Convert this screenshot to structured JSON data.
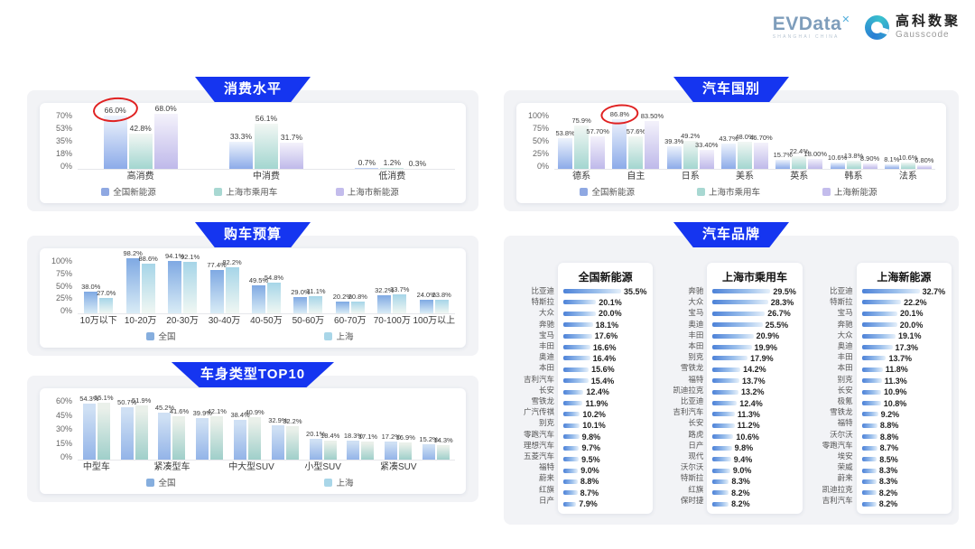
{
  "header": {
    "brand1": "EVData",
    "brand1_sup": "✕",
    "brand1_sub": "SHANGHAI CHINA",
    "brand2_cn": "高科数聚",
    "brand2_en": "Gausscode"
  },
  "colors": {
    "badge_blue": "#1535f0",
    "annotation_red": "#e02121",
    "series_blue": "#8fa8e2",
    "series_teal": "#a8d8d2",
    "series_purple": "#c3bcec",
    "series_cyan": "#a9d6e8"
  },
  "chart_data": [
    {
      "type": "bar",
      "title": "消费水平",
      "yticks": [
        "70%",
        "53%",
        "35%",
        "18%",
        "0%"
      ],
      "ylim": [
        0,
        70
      ],
      "ymax": 70,
      "grid": false,
      "legend_position": "bottom",
      "categories": [
        "高消费",
        "中消费",
        "低消费"
      ],
      "series": [
        {
          "name": "全国新能源",
          "color": "blue",
          "values": [
            "66.0%",
            "33.3%",
            "0.7%"
          ]
        },
        {
          "name": "上海市乘用车",
          "color": "teal",
          "values": [
            "42.8%",
            "56.1%",
            "1.2%"
          ]
        },
        {
          "name": "上海市新能源",
          "color": "purple",
          "values": [
            "68.0%",
            "31.7%",
            "0.3%"
          ]
        }
      ],
      "annotation": {
        "note": "red ellipse around value",
        "group": 0,
        "series": 0,
        "value": "66.0%"
      }
    },
    {
      "type": "bar",
      "title": "购车预算",
      "yticks": [
        "100%",
        "75%",
        "50%",
        "25%",
        "0%"
      ],
      "ylim": [
        0,
        100
      ],
      "ymax": 100,
      "grid": false,
      "legend_position": "bottom",
      "categories": [
        "10万以下",
        "10-20万",
        "20-30万",
        "30-40万",
        "40-50万",
        "50-60万",
        "60-70万",
        "70-100万",
        "100万以上"
      ],
      "series": [
        {
          "name": "全国",
          "color": "blue2",
          "values": [
            "38.0%",
            "98.2%",
            "94.1%",
            "77.4%",
            "49.5%",
            "29.0%",
            "20.2%",
            "32.2%",
            "24.0%"
          ]
        },
        {
          "name": "上海",
          "color": "cyan",
          "values": [
            "27.0%",
            "88.6%",
            "92.1%",
            "82.2%",
            "54.8%",
            "31.1%",
            "20.8%",
            "33.7%",
            "23.8%"
          ]
        }
      ]
    },
    {
      "type": "bar",
      "title": "车身类型TOP10",
      "yticks": [
        "60%",
        "45%",
        "30%",
        "15%",
        "0%"
      ],
      "ylim": [
        0,
        60
      ],
      "ymax": 60,
      "grid": false,
      "legend_position": "bottom",
      "categories": [
        "中型车",
        "",
        "紧凑型车",
        "",
        "中大型SUV",
        "",
        "小型SUV",
        "",
        "紧凑SUV",
        ""
      ],
      "series": [
        {
          "name": "全国",
          "color": "blue3",
          "values": [
            "54.3%",
            "50.7%",
            "45.2%",
            "39.9%",
            "38.4%",
            "32.9%",
            "20.1%",
            "18.3%",
            "17.2%",
            "15.2%"
          ]
        },
        {
          "name": "上海",
          "color": "teal3",
          "values": [
            "55.1%",
            "51.9%",
            "41.6%",
            "42.1%",
            "40.9%",
            "32.2%",
            "18.4%",
            "17.1%",
            "16.9%",
            "14.3%"
          ]
        }
      ]
    },
    {
      "type": "bar",
      "title": "汽车国别",
      "yticks": [
        "100%",
        "75%",
        "50%",
        "25%",
        "0%"
      ],
      "ylim": [
        0,
        100
      ],
      "ymax": 100,
      "grid": false,
      "legend_position": "bottom",
      "categories": [
        "德系",
        "自主",
        "日系",
        "美系",
        "英系",
        "韩系",
        "法系"
      ],
      "series": [
        {
          "name": "全国新能源",
          "color": "blue",
          "values": [
            "53.8%",
            "86.8%",
            "39.3%",
            "43.7%",
            "15.7%",
            "10.6%",
            "8.1%"
          ]
        },
        {
          "name": "上海市乘用车",
          "color": "teal",
          "values": [
            "75.9%",
            "57.6%",
            "49.2%",
            "48.0%",
            "22.4%",
            "13.8%",
            "10.6%"
          ]
        },
        {
          "name": "上海新能源",
          "color": "purple",
          "values": [
            "57.70%",
            "83.50%",
            "33.40%",
            "46.70%",
            "18.00%",
            "8.90%",
            "6.80%"
          ]
        }
      ],
      "annotation": {
        "note": "red ellipse around value",
        "group": 1,
        "series": 0,
        "value": "86.8%"
      }
    },
    {
      "type": "bar",
      "title": "汽车品牌",
      "orientation": "horizontal",
      "lists": [
        {
          "title": "全国新能源",
          "items": [
            {
              "label": "比亚迪",
              "value": "35.5%"
            },
            {
              "label": "特斯拉",
              "value": "20.1%"
            },
            {
              "label": "大众",
              "value": "20.0%"
            },
            {
              "label": "奔驰",
              "value": "18.1%"
            },
            {
              "label": "宝马",
              "value": "17.6%"
            },
            {
              "label": "丰田",
              "value": "16.6%"
            },
            {
              "label": "奥迪",
              "value": "16.4%"
            },
            {
              "label": "本田",
              "value": "15.6%"
            },
            {
              "label": "吉利汽车",
              "value": "15.4%"
            },
            {
              "label": "长安",
              "value": "12.4%"
            },
            {
              "label": "雪铁龙",
              "value": "11.9%"
            },
            {
              "label": "广汽传祺",
              "value": "10.2%"
            },
            {
              "label": "别克",
              "value": "10.1%"
            },
            {
              "label": "零跑汽车",
              "value": "9.8%"
            },
            {
              "label": "理想汽车",
              "value": "9.7%"
            },
            {
              "label": "五菱汽车",
              "value": "9.5%"
            },
            {
              "label": "福特",
              "value": "9.0%"
            },
            {
              "label": "蔚来",
              "value": "8.8%"
            },
            {
              "label": "红旗",
              "value": "8.7%"
            },
            {
              "label": "日产",
              "value": "7.9%"
            }
          ]
        },
        {
          "title": "上海市乘用车",
          "items": [
            {
              "label": "奔驰",
              "value": "29.5%"
            },
            {
              "label": "大众",
              "value": "28.3%"
            },
            {
              "label": "宝马",
              "value": "26.7%"
            },
            {
              "label": "奥迪",
              "value": "25.5%"
            },
            {
              "label": "丰田",
              "value": "20.9%"
            },
            {
              "label": "本田",
              "value": "19.9%"
            },
            {
              "label": "别克",
              "value": "17.9%"
            },
            {
              "label": "雪铁龙",
              "value": "14.2%"
            },
            {
              "label": "福特",
              "value": "13.7%"
            },
            {
              "label": "凯迪拉克",
              "value": "13.2%"
            },
            {
              "label": "比亚迪",
              "value": "12.4%"
            },
            {
              "label": "吉利汽车",
              "value": "11.3%"
            },
            {
              "label": "长安",
              "value": "11.2%"
            },
            {
              "label": "路虎",
              "value": "10.6%"
            },
            {
              "label": "日产",
              "value": "9.8%"
            },
            {
              "label": "现代",
              "value": "9.4%"
            },
            {
              "label": "沃尔沃",
              "value": "9.0%"
            },
            {
              "label": "特斯拉",
              "value": "8.3%"
            },
            {
              "label": "红旗",
              "value": "8.2%"
            },
            {
              "label": "保时捷",
              "value": "8.2%"
            }
          ]
        },
        {
          "title": "上海新能源",
          "items": [
            {
              "label": "比亚迪",
              "value": "32.7%"
            },
            {
              "label": "特斯拉",
              "value": "22.2%"
            },
            {
              "label": "宝马",
              "value": "20.1%"
            },
            {
              "label": "奔驰",
              "value": "20.0%"
            },
            {
              "label": "大众",
              "value": "19.1%"
            },
            {
              "label": "奥迪",
              "value": "17.3%"
            },
            {
              "label": "丰田",
              "value": "13.7%"
            },
            {
              "label": "本田",
              "value": "11.8%"
            },
            {
              "label": "别克",
              "value": "11.3%"
            },
            {
              "label": "长安",
              "value": "10.9%"
            },
            {
              "label": "极氪",
              "value": "10.8%"
            },
            {
              "label": "雪铁龙",
              "value": "9.2%"
            },
            {
              "label": "福特",
              "value": "8.8%"
            },
            {
              "label": "沃尔沃",
              "value": "8.8%"
            },
            {
              "label": "零跑汽车",
              "value": "8.7%"
            },
            {
              "label": "埃安",
              "value": "8.5%"
            },
            {
              "label": "荣威",
              "value": "8.3%"
            },
            {
              "label": "蔚来",
              "value": "8.3%"
            },
            {
              "label": "凯迪拉克",
              "value": "8.2%"
            },
            {
              "label": "吉利汽车",
              "value": "8.2%"
            }
          ]
        }
      ]
    }
  ]
}
